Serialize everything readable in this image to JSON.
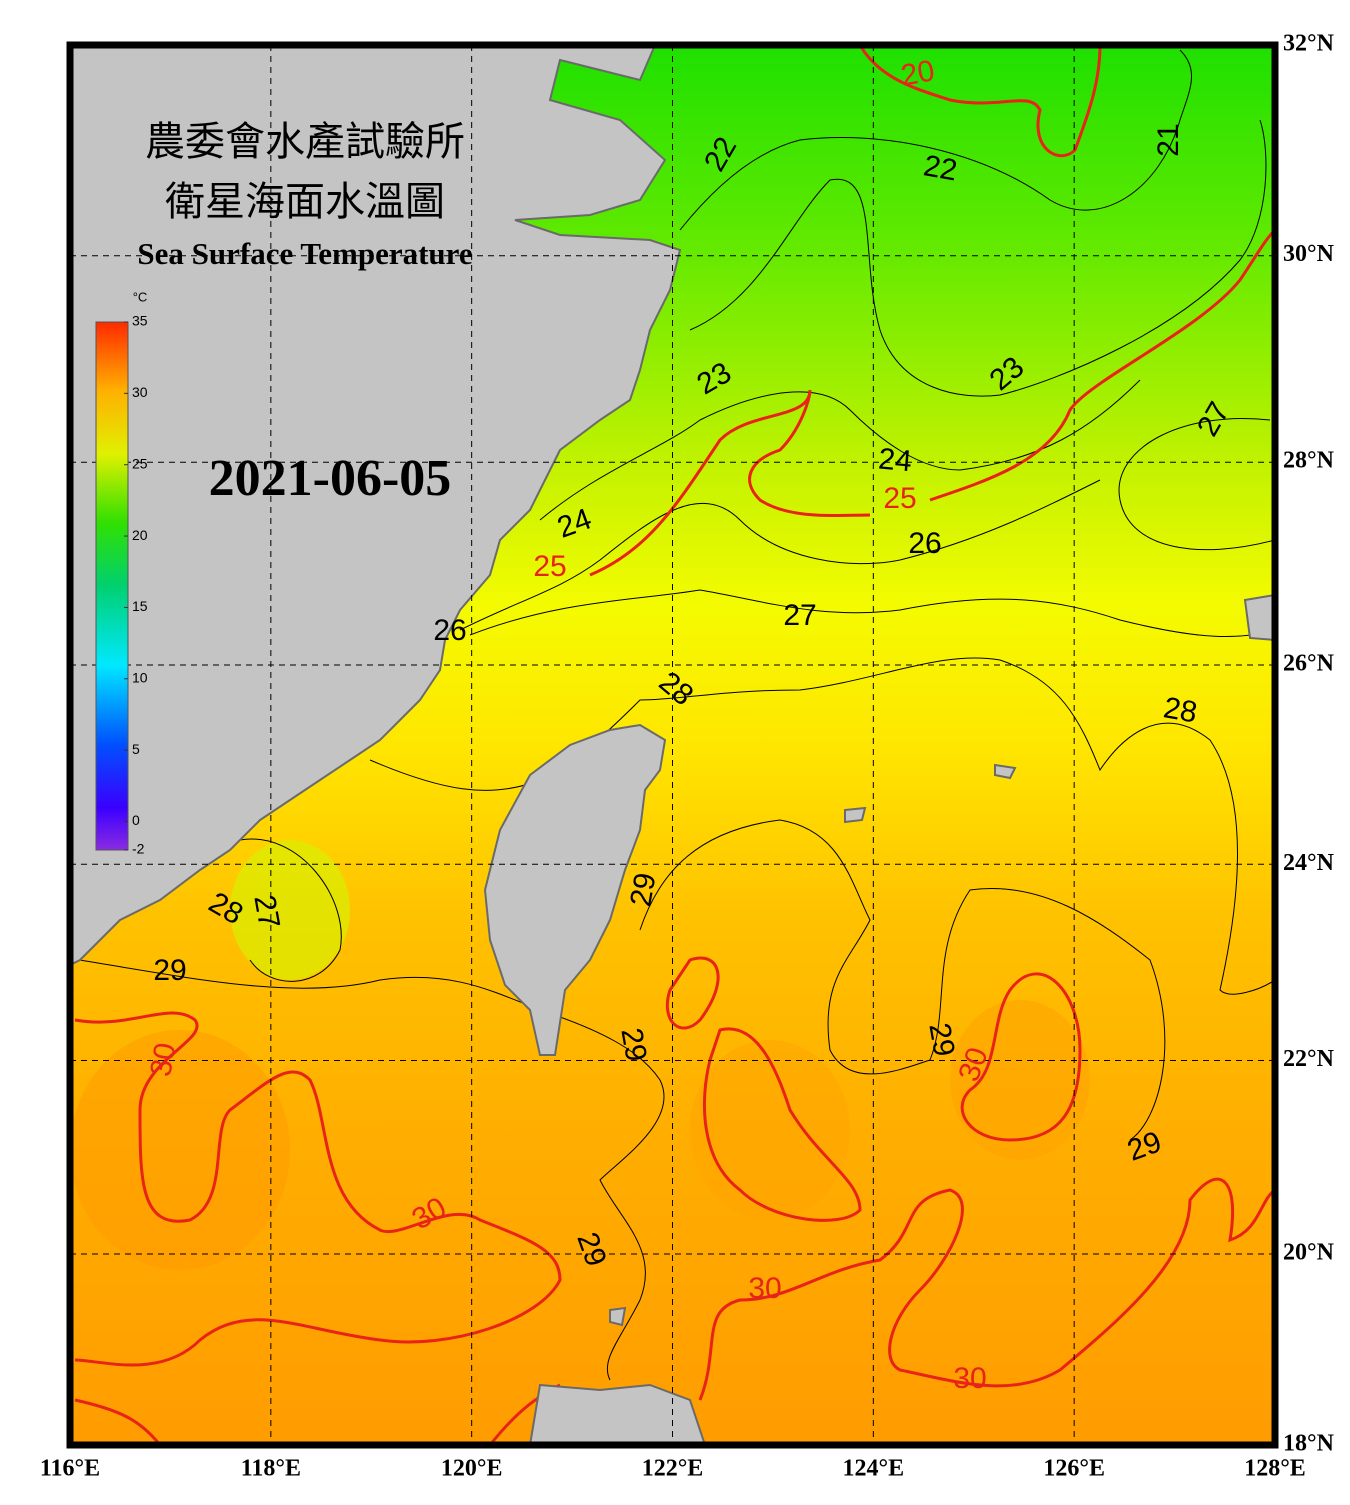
{
  "map": {
    "title_zh_1": "農委會水產試驗所",
    "title_zh_2": "衛星海面水溫圖",
    "title_en": "Sea Surface Temperature",
    "date": "2021-06-05",
    "colorbar_unit": "°C",
    "colorbar_lim": [
      -2,
      35
    ],
    "colorbar_ticks": [
      -2,
      0,
      5,
      10,
      15,
      20,
      25,
      30,
      35
    ],
    "lonlim": [
      116,
      128
    ],
    "latlim": [
      18,
      32
    ],
    "lon_ticks": [
      {
        "value": 116,
        "label": "116°E"
      },
      {
        "value": 118,
        "label": "118°E"
      },
      {
        "value": 120,
        "label": "120°E"
      },
      {
        "value": 122,
        "label": "122°E"
      },
      {
        "value": 124,
        "label": "124°E"
      },
      {
        "value": 126,
        "label": "126°E"
      },
      {
        "value": 128,
        "label": "128°E"
      }
    ],
    "lat_ticks": [
      {
        "value": 18,
        "label": "18°N"
      },
      {
        "value": 20,
        "label": "20°N"
      },
      {
        "value": 22,
        "label": "22°N"
      },
      {
        "value": 24,
        "label": "24°N"
      },
      {
        "value": 26,
        "label": "26°N"
      },
      {
        "value": 28,
        "label": "28°N"
      },
      {
        "value": 30,
        "label": "30°N"
      },
      {
        "value": 32,
        "label": "32°N"
      }
    ],
    "grid": true,
    "major_contour_every": 5,
    "major_contour_color": "#e8231a",
    "minor_contour_color": "#000000",
    "contour_labels": [
      20,
      21,
      22,
      22,
      23,
      23,
      24,
      24,
      25,
      25,
      26,
      26,
      27,
      27,
      28,
      28,
      28,
      27,
      29,
      29,
      29,
      29,
      29,
      29,
      30,
      30,
      30,
      30,
      30
    ]
  }
}
